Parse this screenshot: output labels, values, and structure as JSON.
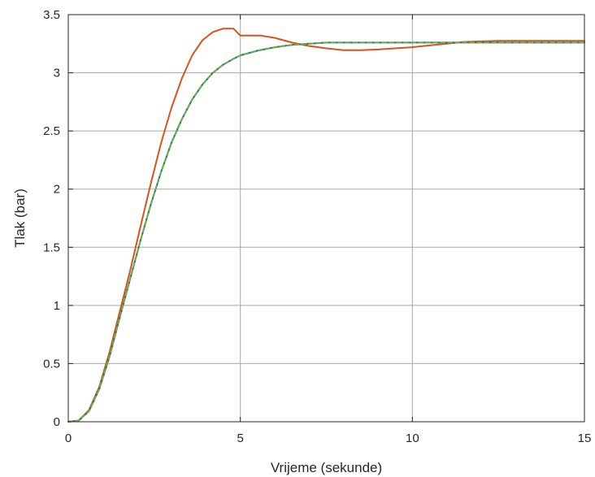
{
  "chart_data": {
    "type": "line",
    "xlabel": "Vrijeme (sekunde)",
    "ylabel": "Tlak (bar)",
    "xlim": [
      0,
      15
    ],
    "ylim": [
      0,
      3.5
    ],
    "xticks": [
      0,
      5,
      10,
      15
    ],
    "xtick_labels": [
      "0",
      "5",
      "10",
      "15"
    ],
    "yticks": [
      0,
      0.5,
      1,
      1.5,
      2,
      2.5,
      3,
      3.5
    ],
    "ytick_labels": [
      "0",
      "0.5",
      "1",
      "1.5",
      "2",
      "2.5",
      "3",
      "3.5"
    ],
    "grid": true,
    "series": [
      {
        "color": "#d95319",
        "style": "solid",
        "x": [
          0,
          0.3,
          0.6,
          0.9,
          1.2,
          1.5,
          1.8,
          2.1,
          2.4,
          2.7,
          3.0,
          3.3,
          3.6,
          3.9,
          4.2,
          4.5,
          4.8,
          5.0,
          5.3,
          5.6,
          6.0,
          6.5,
          7.0,
          7.5,
          8.0,
          8.5,
          9.0,
          9.5,
          10,
          10.5,
          11,
          11.5,
          12,
          12.5,
          13,
          13.5,
          14,
          14.5,
          15
        ],
        "y": [
          0,
          0.01,
          0.1,
          0.3,
          0.6,
          0.95,
          1.3,
          1.68,
          2.05,
          2.4,
          2.7,
          2.95,
          3.15,
          3.28,
          3.35,
          3.38,
          3.38,
          3.32,
          3.32,
          3.32,
          3.3,
          3.26,
          3.23,
          3.21,
          3.195,
          3.195,
          3.2,
          3.21,
          3.22,
          3.235,
          3.25,
          3.265,
          3.27,
          3.275,
          3.275,
          3.275,
          3.275,
          3.275,
          3.275
        ]
      },
      {
        "color": "#0072bd",
        "style": "solid",
        "x": [
          0,
          0.3,
          0.6,
          0.9,
          1.2,
          1.5,
          1.8,
          2.1,
          2.4,
          2.7,
          3.0,
          3.3,
          3.6,
          3.9,
          4.2,
          4.5,
          4.8,
          5.0,
          5.5,
          6.0,
          6.5,
          7.0,
          7.5,
          8.0,
          9.0,
          10,
          11,
          12,
          13,
          14,
          15
        ],
        "y": [
          0,
          0.01,
          0.09,
          0.28,
          0.56,
          0.9,
          1.23,
          1.56,
          1.87,
          2.15,
          2.4,
          2.6,
          2.77,
          2.9,
          3.0,
          3.07,
          3.12,
          3.15,
          3.19,
          3.22,
          3.24,
          3.25,
          3.26,
          3.26,
          3.26,
          3.26,
          3.26,
          3.26,
          3.26,
          3.26,
          3.26
        ]
      },
      {
        "color": "#77ac30",
        "style": "dashed",
        "x": [
          0,
          0.3,
          0.6,
          0.9,
          1.2,
          1.5,
          1.8,
          2.1,
          2.4,
          2.7,
          3.0,
          3.3,
          3.6,
          3.9,
          4.2,
          4.5,
          4.8,
          5.0,
          5.5,
          6.0,
          6.5,
          7.0,
          7.5,
          8.0,
          9.0,
          10,
          11,
          12,
          13,
          14,
          15
        ],
        "y": [
          0,
          0.01,
          0.09,
          0.28,
          0.56,
          0.9,
          1.23,
          1.56,
          1.87,
          2.15,
          2.4,
          2.6,
          2.77,
          2.9,
          3.0,
          3.07,
          3.12,
          3.15,
          3.19,
          3.22,
          3.24,
          3.25,
          3.26,
          3.26,
          3.26,
          3.26,
          3.26,
          3.26,
          3.26,
          3.26,
          3.26
        ]
      }
    ]
  }
}
